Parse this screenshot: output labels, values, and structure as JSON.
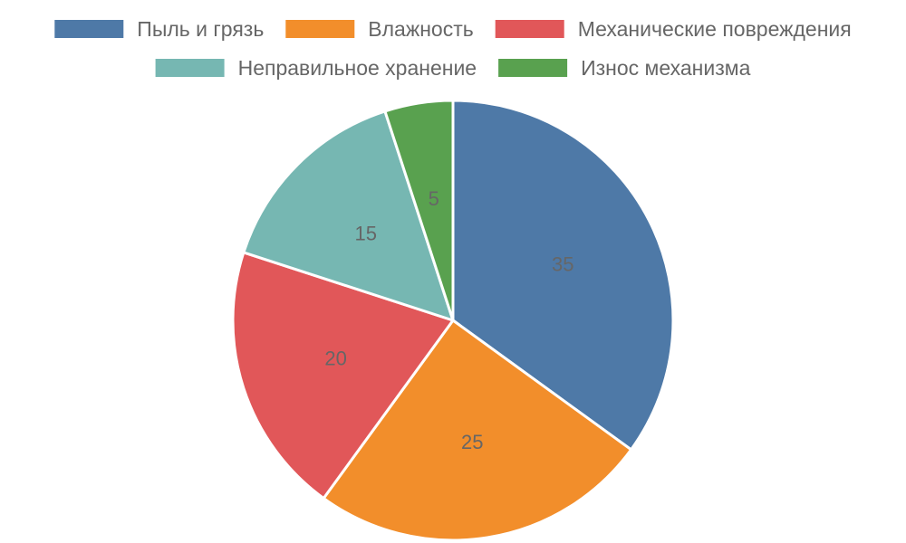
{
  "chart_data": {
    "type": "pie",
    "categories": [
      "Пыль и грязь",
      "Влажность",
      "Механические повреждения",
      "Неправильное хранение",
      "Износ механизма"
    ],
    "values": [
      35,
      25,
      20,
      15,
      5
    ],
    "colors": [
      "#4e79a7",
      "#f28e2b",
      "#e15759",
      "#76b7b2",
      "#59a14f"
    ],
    "data_labels": [
      "35",
      "25",
      "20",
      "15",
      "5"
    ],
    "legend_position": "top",
    "slice_border_color": "#ffffff"
  }
}
